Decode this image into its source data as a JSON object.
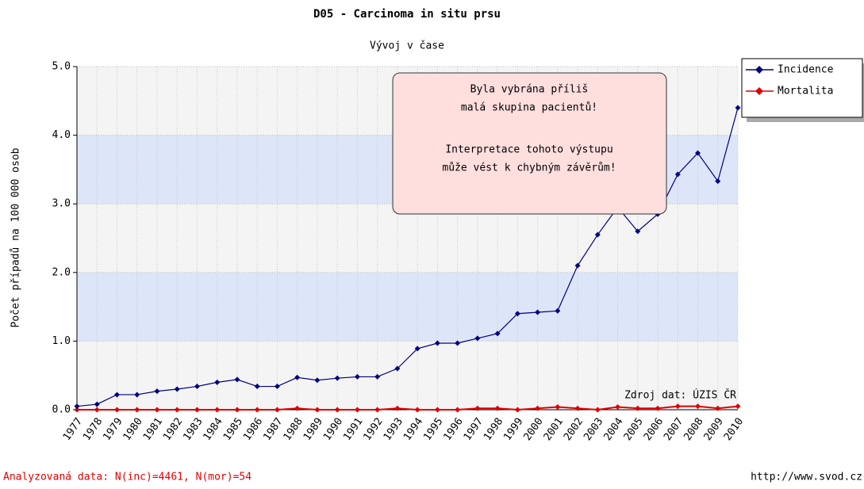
{
  "chart_data": {
    "type": "line",
    "title": "D05 - Carcinoma in situ prsu",
    "subtitle": "Vývoj v čase",
    "y_label": "Počet případů na 100 000 osob",
    "categories": [
      "1977",
      "1978",
      "1979",
      "1980",
      "1981",
      "1982",
      "1983",
      "1984",
      "1985",
      "1986",
      "1987",
      "1988",
      "1989",
      "1990",
      "1991",
      "1992",
      "1993",
      "1994",
      "1995",
      "1996",
      "1997",
      "1998",
      "1999",
      "2000",
      "2001",
      "2002",
      "2003",
      "2004",
      "2005",
      "2006",
      "2007",
      "2008",
      "2009",
      "2010"
    ],
    "series": [
      {
        "name": "Incidence",
        "color": "#000080",
        "values": [
          0.05,
          0.08,
          0.22,
          0.22,
          0.27,
          0.3,
          0.34,
          0.4,
          0.44,
          0.34,
          0.34,
          0.47,
          0.43,
          0.46,
          0.48,
          0.48,
          0.6,
          0.89,
          0.97,
          0.97,
          1.04,
          1.11,
          1.4,
          1.42,
          1.44,
          2.1,
          2.55,
          2.95,
          2.6,
          2.85,
          3.43,
          3.74,
          3.33,
          4.4
        ]
      },
      {
        "name": "Mortalita",
        "color": "#e00000",
        "values": [
          0,
          0,
          0,
          0,
          0,
          0,
          0,
          0,
          0,
          0,
          0,
          0.02,
          0,
          0,
          0,
          0,
          0.02,
          0,
          0,
          0,
          0.02,
          0.02,
          0,
          0.02,
          0.04,
          0.02,
          0,
          0.04,
          0.02,
          0.02,
          0.05,
          0.05,
          0.02,
          0.05
        ]
      }
    ],
    "ylim": [
      0,
      5
    ],
    "yticks": [
      {
        "value": 0,
        "label": "0.0"
      },
      {
        "value": 1,
        "label": "1.0"
      },
      {
        "value": 2,
        "label": "2.0"
      },
      {
        "value": 3,
        "label": "3.0"
      },
      {
        "value": 4,
        "label": "4.0"
      },
      {
        "value": 5,
        "label": "5.0"
      }
    ],
    "grid": true,
    "legend": "right",
    "annotation": [
      [
        "Byla vybrána příliš",
        "malá skupina pacientů!"
      ],
      [
        "Interpretace tohoto výstupu",
        "může vést k chybným závěrům!"
      ]
    ],
    "source": "Zdroj dat: ÚZIS ČR",
    "footer_left": "Analyzovaná data: N(inc)=4461, N(mor)=54",
    "footer_right": "http://www.svod.cz"
  }
}
